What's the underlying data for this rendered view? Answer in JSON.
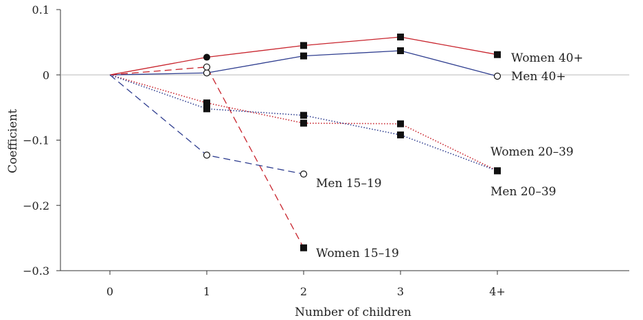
{
  "chart_data": {
    "type": "line",
    "xlabel": "Number of children",
    "ylabel": "Coefficient",
    "categories": [
      "0",
      "1",
      "2",
      "3",
      "4+"
    ],
    "ylim": [
      -0.3,
      0.1
    ],
    "yticks": [
      0.1,
      0,
      -0.1,
      -0.2,
      -0.3
    ],
    "ytick_labels": [
      "0.1",
      "0",
      "−0.1",
      "−0.2",
      "−0.3"
    ],
    "grid": false,
    "reference_line": 0,
    "series": [
      {
        "name": "Women 40+",
        "values": [
          0,
          0.027,
          0.045,
          0.058,
          0.031
        ],
        "color": "#c8232c",
        "dash": "solid",
        "markers": [
          "none",
          "circle-filled",
          "square",
          "square",
          "square"
        ]
      },
      {
        "name": "Men 40+",
        "values": [
          0,
          0.003,
          0.029,
          0.037,
          -0.002
        ],
        "color": "#2e3d8f",
        "dash": "solid",
        "markers": [
          "none",
          "circle-open",
          "square",
          "square",
          "circle-open"
        ]
      },
      {
        "name": "Women 20–39",
        "values": [
          0,
          -0.043,
          -0.074,
          -0.075,
          -0.147
        ],
        "color": "#c8232c",
        "dash": "dotted",
        "markers": [
          "none",
          "square",
          "square",
          "square",
          "square"
        ]
      },
      {
        "name": "Men 20–39",
        "values": [
          0,
          -0.052,
          -0.062,
          -0.092,
          -0.147
        ],
        "color": "#2e3d8f",
        "dash": "dotted",
        "markers": [
          "none",
          "square",
          "square",
          "square",
          "square"
        ]
      },
      {
        "name": "Women 15–19",
        "values": [
          0,
          0.012,
          -0.265,
          null,
          null
        ],
        "color": "#c8232c",
        "dash": "dashed",
        "markers": [
          "none",
          "circle-open",
          "square",
          "none",
          "none"
        ]
      },
      {
        "name": "Men 15–19",
        "values": [
          0,
          -0.123,
          -0.152,
          null,
          null
        ],
        "color": "#2e3d8f",
        "dash": "dashed",
        "markers": [
          "none",
          "circle-open",
          "circle-open",
          "none",
          "none"
        ]
      }
    ]
  }
}
